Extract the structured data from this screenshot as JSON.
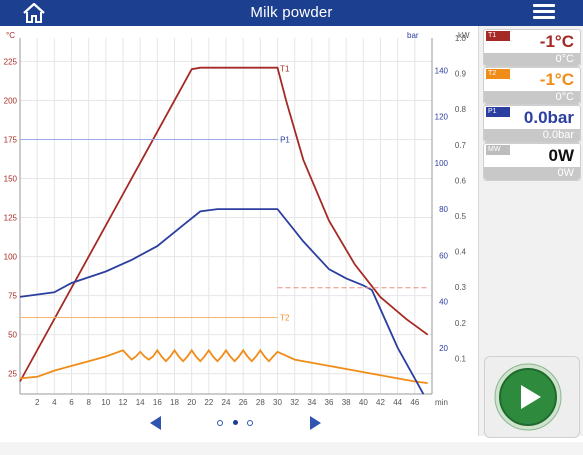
{
  "app": {
    "title": "Milk powder"
  },
  "colors": {
    "topbar": "#1d3f8f",
    "t1": "#a52a25",
    "t2": "#f08c18",
    "p1": "#2c3fa0",
    "mw": "#aaaaaa",
    "play": "#2e8b3e"
  },
  "icons": {
    "home": "home-icon",
    "menu": "hamburger-menu-icon",
    "play": "play-icon",
    "prev": "arrow-left-icon",
    "next": "arrow-right-icon"
  },
  "chart_data": {
    "type": "line",
    "left_axis_unit": "°C",
    "bar_axis_unit": "bar",
    "kw_axis_unit": "kW",
    "x_unit": "min",
    "xlim": [
      0,
      48
    ],
    "x_ticks": [
      2,
      4,
      6,
      8,
      10,
      12,
      14,
      16,
      18,
      20,
      22,
      24,
      26,
      28,
      30,
      32,
      34,
      36,
      38,
      40,
      42,
      44,
      46
    ],
    "left_ylim": [
      12,
      240
    ],
    "left_ticks": [
      25,
      50,
      75,
      100,
      125,
      150,
      175,
      200,
      225
    ],
    "bar_ylim": [
      0,
      154
    ],
    "bar_ticks": [
      20,
      40,
      60,
      80,
      100,
      120,
      140
    ],
    "kw_ylim": [
      0,
      1.0
    ],
    "kw_ticks": [
      "0.1",
      "0.2",
      "0.3",
      "0.4",
      "0.5",
      "0.6",
      "0.7",
      "0.8",
      "0.9",
      "1.0"
    ],
    "grid": true,
    "series": [
      {
        "name": "T1",
        "axis": "left",
        "color": "#a52a25",
        "x": [
          0,
          20,
          21,
          30,
          31,
          33,
          36,
          39,
          42,
          45,
          47.5
        ],
        "y": [
          20,
          220,
          221,
          221,
          200,
          162,
          123,
          95,
          74,
          60,
          50
        ]
      },
      {
        "name": "T2",
        "axis": "left",
        "color": "#f08c18",
        "x": [
          0,
          2,
          4,
          6,
          8,
          10,
          12,
          12.5,
          13,
          13.5,
          14,
          14.5,
          15,
          15.5,
          16,
          16.5,
          17,
          17.5,
          18,
          18.5,
          19,
          19.5,
          20,
          20.5,
          21,
          21.5,
          22,
          22.5,
          23,
          23.5,
          24,
          24.5,
          25,
          25.5,
          26,
          26.5,
          27,
          27.5,
          28,
          28.5,
          29,
          29.5,
          30,
          32,
          34,
          36,
          38,
          40,
          42,
          44,
          46,
          47.5
        ],
        "y": [
          22,
          23,
          27,
          30,
          33,
          36,
          40,
          37,
          34,
          36,
          39,
          36,
          34,
          36,
          40,
          36,
          33,
          36,
          40,
          36,
          33,
          36,
          40,
          36,
          33,
          36,
          40,
          36,
          33,
          36,
          40,
          36,
          33,
          36,
          40,
          36,
          33,
          36,
          40,
          36,
          33,
          36,
          39,
          34,
          32,
          30,
          28,
          26,
          24,
          22,
          20,
          19
        ]
      },
      {
        "name": "P1",
        "axis": "bar",
        "color": "#2c3fa0",
        "x": [
          0,
          4,
          6,
          10,
          13,
          16,
          19,
          21,
          23,
          26,
          30,
          33,
          36,
          38,
          40,
          41,
          44,
          47
        ],
        "y": [
          42,
          44,
          48,
          53,
          58,
          64,
          73,
          79,
          80,
          80,
          80,
          66,
          54,
          50,
          47,
          45,
          20,
          0
        ]
      },
      {
        "name": "T1 setpoint",
        "axis": "left",
        "color": "#e8907e",
        "dashed": true,
        "x": [
          30,
          47.5
        ],
        "y": [
          80,
          80
        ]
      },
      {
        "name": "P1 setpoint",
        "axis": "left",
        "color": "#9aa8e6",
        "x": [
          0,
          30
        ],
        "y": [
          175,
          175
        ]
      },
      {
        "name": "T2 setpoint",
        "axis": "left",
        "color": "#f5b56a",
        "x": [
          0,
          30
        ],
        "y": [
          61,
          61
        ]
      }
    ],
    "labels": {
      "t1": "T1",
      "p1": "P1",
      "t2": "T2"
    }
  },
  "pager": {
    "pages": 3,
    "current": 2
  },
  "sensors": [
    {
      "tag": "T1",
      "value": "-1°C",
      "setpoint": "0°C",
      "color": "#a52a25"
    },
    {
      "tag": "T2",
      "value": "-1°C",
      "setpoint": "0°C",
      "color": "#f08c18"
    },
    {
      "tag": "P1",
      "value": "0.0bar",
      "setpoint": "0.0bar",
      "color": "#2c3fa0"
    },
    {
      "tag": "MW",
      "value": "0W",
      "setpoint": "0W",
      "color": "#111111"
    }
  ]
}
